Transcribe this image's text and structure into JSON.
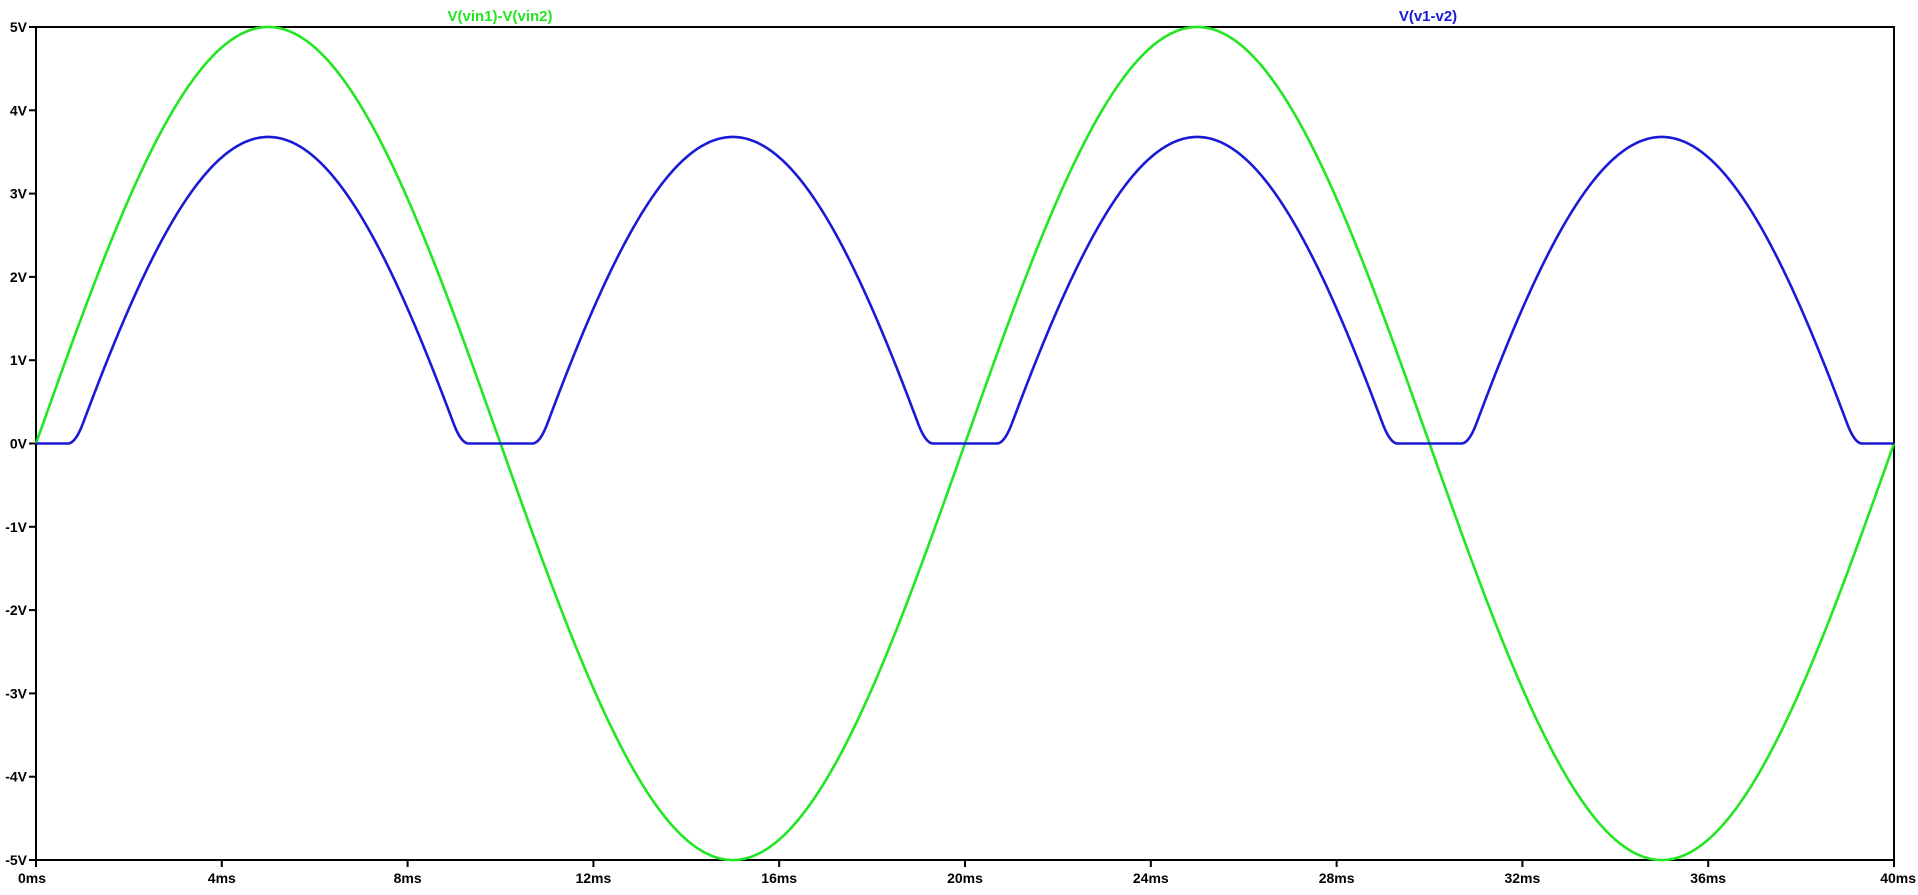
{
  "chart_data": {
    "type": "line",
    "x_unit": "ms",
    "y_unit": "V",
    "xlim": [
      0,
      40
    ],
    "ylim": [
      -5,
      5
    ],
    "x_ticks": [
      "0ms",
      "4ms",
      "8ms",
      "12ms",
      "16ms",
      "20ms",
      "24ms",
      "28ms",
      "32ms",
      "36ms",
      "40ms"
    ],
    "y_ticks": [
      "5V",
      "4V",
      "3V",
      "2V",
      "1V",
      "0V",
      "-1V",
      "-2V",
      "-3V",
      "-4V",
      "-5V"
    ],
    "x_tick_values": [
      0,
      4,
      8,
      12,
      16,
      20,
      24,
      28,
      32,
      36,
      40
    ],
    "y_tick_values": [
      5,
      4,
      3,
      2,
      1,
      0,
      -1,
      -2,
      -3,
      -4,
      -5
    ],
    "grid": false,
    "series": [
      {
        "name": "V(vin1)-V(vin2)",
        "color": "#22e622",
        "amplitude": 5,
        "frequency_hz": 50,
        "description_values": {
          "peak": 5,
          "trough": -5
        }
      },
      {
        "name": "V(v1-v2)",
        "color": "#1a1ad6",
        "peak": 3.68,
        "threshold": 1.32,
        "description_values": {
          "peak": 3.68,
          "floor": 0
        }
      }
    ]
  }
}
